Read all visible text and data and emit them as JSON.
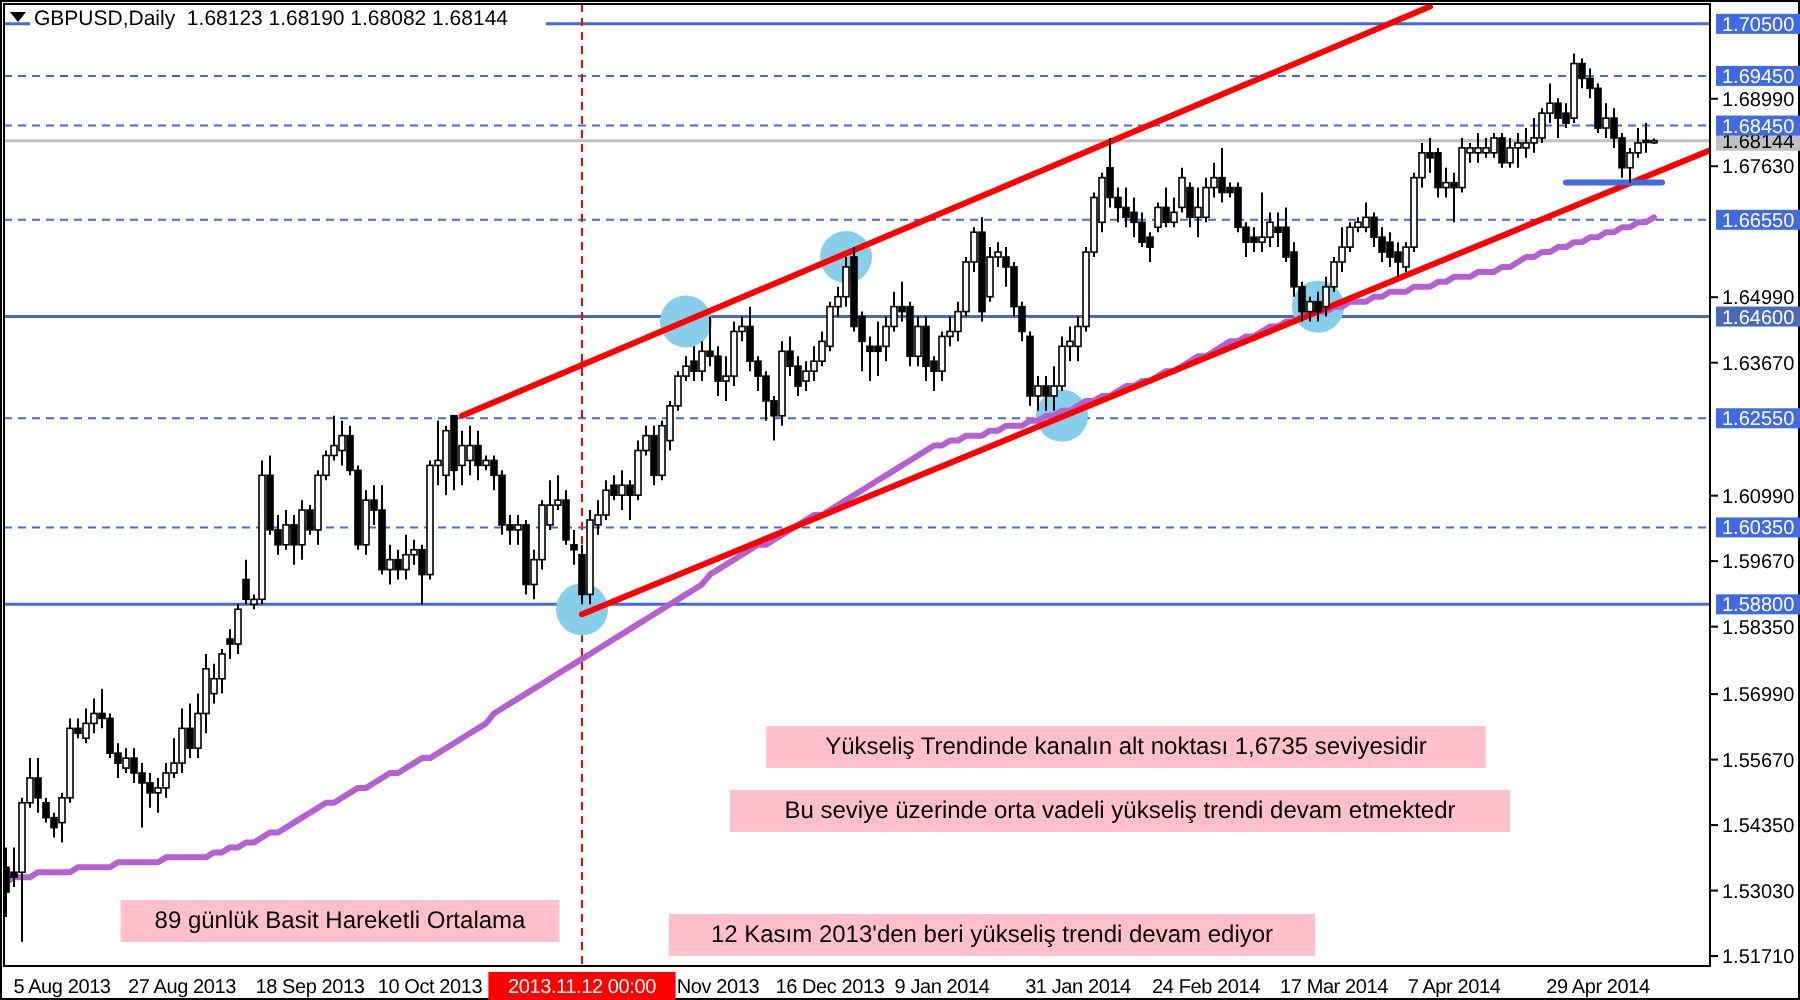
{
  "chart_data": {
    "type": "candlestick",
    "title": "GBPUSD,Daily  1.68123 1.68190 1.68082 1.68144",
    "categories": [
      null,
      null,
      null,
      null,
      null,
      null,
      null,
      "5 Aug 2013",
      null,
      null,
      null,
      null,
      null,
      null,
      null,
      null,
      null,
      null,
      null,
      null,
      null,
      null,
      "27 Aug 2013",
      null,
      null,
      null,
      null,
      null,
      null,
      null,
      null,
      null,
      null,
      null,
      null,
      null,
      null,
      null,
      "18 Sep 2013",
      null,
      null,
      null,
      null,
      null,
      null,
      null,
      null,
      null,
      null,
      null,
      null,
      null,
      null,
      "10 Oct 2013",
      null,
      null,
      null,
      null,
      null,
      null,
      null,
      null,
      null,
      null,
      null,
      null,
      null,
      null,
      null,
      null,
      null,
      null,
      "2013.11.12 00:00",
      null,
      null,
      null,
      null,
      null,
      null,
      null,
      null,
      null,
      null,
      null,
      null,
      null,
      null,
      null,
      null,
      "Nov 2013",
      null,
      null,
      null,
      null,
      null,
      null,
      null,
      null,
      null,
      null,
      null,
      null,
      null,
      "16 Dec 2013",
      null,
      null,
      null,
      null,
      null,
      null,
      null,
      null,
      null,
      null,
      null,
      null,
      null,
      "9 Jan 2014",
      null,
      null,
      null,
      null,
      null,
      null,
      null,
      null,
      null,
      null,
      null,
      null,
      null,
      null,
      null,
      null,
      "31 Jan 2014",
      null,
      null,
      null,
      null,
      null,
      null,
      null,
      null,
      null,
      null,
      null,
      null,
      null,
      null,
      null,
      "24 Feb 2014",
      null,
      null,
      null,
      null,
      null,
      null,
      null,
      null,
      null,
      null,
      null,
      null,
      null,
      null,
      null,
      "17 Mar 2014",
      null,
      null,
      null,
      null,
      null,
      null,
      null,
      null,
      null,
      null,
      null,
      null,
      null,
      null,
      "7 Apr 2014",
      null,
      null,
      null,
      null,
      null,
      null,
      null,
      null,
      null,
      null,
      null,
      null,
      null,
      null,
      null,
      null,
      null,
      "29 Apr 2014",
      null,
      null,
      null,
      null,
      null,
      null,
      null,
      null,
      null,
      null,
      null,
      null,
      null,
      null
    ],
    "ohlc": [
      [
        1.535,
        1.539,
        1.525,
        1.53
      ],
      [
        1.534,
        1.539,
        1.531,
        1.533
      ],
      [
        1.534,
        1.549,
        1.52,
        1.548
      ],
      [
        1.548,
        1.557,
        1.547,
        1.553
      ],
      [
        1.553,
        1.557,
        1.546,
        1.549
      ],
      [
        1.548,
        1.549,
        1.544,
        1.545
      ],
      [
        1.545,
        1.546,
        1.541,
        1.543
      ],
      [
        1.544,
        1.55,
        1.54,
        1.549
      ],
      [
        1.549,
        1.565,
        1.548,
        1.563
      ],
      [
        1.563,
        1.565,
        1.561,
        1.562
      ],
      [
        1.561,
        1.567,
        1.56,
        1.564
      ],
      [
        1.564,
        1.569,
        1.562,
        1.566
      ],
      [
        1.566,
        1.571,
        1.563,
        1.565
      ],
      [
        1.565,
        1.566,
        1.557,
        1.558
      ],
      [
        1.558,
        1.56,
        1.553,
        1.556
      ],
      [
        1.555,
        1.559,
        1.554,
        1.557
      ],
      [
        1.557,
        1.559,
        1.552,
        1.554
      ],
      [
        1.554,
        1.556,
        1.543,
        1.552
      ],
      [
        1.552,
        1.554,
        1.547,
        1.55
      ],
      [
        1.55,
        1.553,
        1.546,
        1.551
      ],
      [
        1.551,
        1.556,
        1.549,
        1.554
      ],
      [
        1.554,
        1.561,
        1.553,
        1.556
      ],
      [
        1.556,
        1.567,
        1.554,
        1.563
      ],
      [
        1.563,
        1.568,
        1.557,
        1.559
      ],
      [
        1.559,
        1.57,
        1.557,
        1.566
      ],
      [
        1.566,
        1.578,
        1.562,
        1.575
      ],
      [
        1.57,
        1.576,
        1.568,
        1.573
      ],
      [
        1.573,
        1.579,
        1.57,
        1.578
      ],
      [
        1.581,
        1.583,
        1.577,
        1.58
      ],
      [
        1.58,
        1.588,
        1.578,
        1.587
      ],
      [
        1.593,
        1.597,
        1.588,
        1.589
      ],
      [
        1.588,
        1.59,
        1.587,
        1.589
      ],
      [
        1.589,
        1.617,
        1.588,
        1.614
      ],
      [
        1.614,
        1.618,
        1.602,
        1.603
      ],
      [
        1.603,
        1.606,
        1.598,
        1.6
      ],
      [
        1.6,
        1.607,
        1.599,
        1.604
      ],
      [
        1.604,
        1.606,
        1.596,
        1.6
      ],
      [
        1.6,
        1.609,
        1.597,
        1.607
      ],
      [
        1.607,
        1.608,
        1.602,
        1.603
      ],
      [
        1.603,
        1.615,
        1.6,
        1.614
      ],
      [
        1.614,
        1.619,
        1.613,
        1.618
      ],
      [
        1.618,
        1.626,
        1.617,
        1.62
      ],
      [
        1.619,
        1.625,
        1.616,
        1.622
      ],
      [
        1.622,
        1.624,
        1.614,
        1.615
      ],
      [
        1.615,
        1.616,
        1.599,
        1.6
      ],
      [
        1.6,
        1.611,
        1.598,
        1.609
      ],
      [
        1.609,
        1.612,
        1.604,
        1.607
      ],
      [
        1.607,
        1.612,
        1.594,
        1.595
      ],
      [
        1.595,
        1.6,
        1.592,
        1.597
      ],
      [
        1.597,
        1.599,
        1.593,
        1.595
      ],
      [
        1.595,
        1.602,
        1.593,
        1.598
      ],
      [
        1.598,
        1.601,
        1.596,
        1.599
      ],
      [
        1.599,
        1.6,
        1.588,
        1.594
      ],
      [
        1.594,
        1.617,
        1.593,
        1.616
      ],
      [
        1.616,
        1.625,
        1.612,
        1.617
      ],
      [
        1.614,
        1.624,
        1.61,
        1.623
      ],
      [
        1.626,
        1.626,
        1.611,
        1.615
      ],
      [
        1.616,
        1.623,
        1.612,
        1.62
      ],
      [
        1.617,
        1.624,
        1.614,
        1.62
      ],
      [
        1.62,
        1.623,
        1.613,
        1.616
      ],
      [
        1.616,
        1.618,
        1.615,
        1.617
      ],
      [
        1.617,
        1.618,
        1.611,
        1.614
      ],
      [
        1.614,
        1.615,
        1.602,
        1.604
      ],
      [
        1.604,
        1.606,
        1.6,
        1.603
      ],
      [
        1.603,
        1.606,
        1.6,
        1.604
      ],
      [
        1.604,
        1.605,
        1.59,
        1.592
      ],
      [
        1.592,
        1.599,
        1.589,
        1.597
      ],
      [
        1.597,
        1.609,
        1.595,
        1.608
      ],
      [
        1.604,
        1.613,
        1.603,
        1.608
      ],
      [
        1.608,
        1.614,
        1.607,
        1.609
      ],
      [
        1.609,
        1.611,
        1.6,
        1.601
      ],
      [
        1.6,
        1.603,
        1.596,
        1.599
      ],
      [
        1.598,
        1.6,
        1.588,
        1.59
      ],
      [
        1.59,
        1.607,
        1.588,
        1.605
      ],
      [
        1.604,
        1.609,
        1.602,
        1.606
      ],
      [
        1.606,
        1.613,
        1.605,
        1.611
      ],
      [
        1.612,
        1.614,
        1.609,
        1.61
      ],
      [
        1.61,
        1.615,
        1.607,
        1.612
      ],
      [
        1.612,
        1.613,
        1.605,
        1.61
      ],
      [
        1.61,
        1.621,
        1.609,
        1.619
      ],
      [
        1.619,
        1.624,
        1.618,
        1.622
      ],
      [
        1.622,
        1.624,
        1.612,
        1.614
      ],
      [
        1.614,
        1.625,
        1.613,
        1.624
      ],
      [
        1.621,
        1.629,
        1.619,
        1.628
      ],
      [
        1.628,
        1.635,
        1.627,
        1.634
      ],
      [
        1.634,
        1.638,
        1.633,
        1.636
      ],
      [
        1.637,
        1.64,
        1.633,
        1.635
      ],
      [
        1.635,
        1.641,
        1.633,
        1.639
      ],
      [
        1.639,
        1.646,
        1.636,
        1.638
      ],
      [
        1.638,
        1.64,
        1.63,
        1.633
      ],
      [
        1.633,
        1.638,
        1.629,
        1.634
      ],
      [
        1.634,
        1.645,
        1.632,
        1.643
      ],
      [
        1.643,
        1.646,
        1.641,
        1.644
      ],
      [
        1.644,
        1.648,
        1.635,
        1.637
      ],
      [
        1.637,
        1.638,
        1.631,
        1.634
      ],
      [
        1.634,
        1.635,
        1.625,
        1.629
      ],
      [
        1.629,
        1.63,
        1.621,
        1.626
      ],
      [
        1.626,
        1.641,
        1.624,
        1.639
      ],
      [
        1.639,
        1.642,
        1.634,
        1.636
      ],
      [
        1.636,
        1.638,
        1.63,
        1.632
      ],
      [
        1.633,
        1.637,
        1.631,
        1.635
      ],
      [
        1.635,
        1.64,
        1.633,
        1.637
      ],
      [
        1.637,
        1.643,
        1.636,
        1.641
      ],
      [
        1.64,
        1.649,
        1.639,
        1.648
      ],
      [
        1.648,
        1.652,
        1.646,
        1.65
      ],
      [
        1.65,
        1.658,
        1.648,
        1.656
      ],
      [
        1.658,
        1.66,
        1.643,
        1.644
      ],
      [
        1.646,
        1.647,
        1.635,
        1.641
      ],
      [
        1.64,
        1.642,
        1.633,
        1.639
      ],
      [
        1.64,
        1.645,
        1.634,
        1.639
      ],
      [
        1.64,
        1.646,
        1.637,
        1.644
      ],
      [
        1.644,
        1.651,
        1.643,
        1.648
      ],
      [
        1.648,
        1.653,
        1.645,
        1.647
      ],
      [
        1.648,
        1.649,
        1.636,
        1.638
      ],
      [
        1.638,
        1.646,
        1.636,
        1.644
      ],
      [
        1.644,
        1.646,
        1.633,
        1.636
      ],
      [
        1.637,
        1.638,
        1.631,
        1.635
      ],
      [
        1.635,
        1.643,
        1.633,
        1.642
      ],
      [
        1.642,
        1.646,
        1.64,
        1.643
      ],
      [
        1.643,
        1.649,
        1.641,
        1.647
      ],
      [
        1.647,
        1.658,
        1.646,
        1.657
      ],
      [
        1.657,
        1.664,
        1.655,
        1.663
      ],
      [
        1.663,
        1.666,
        1.645,
        1.647
      ],
      [
        1.65,
        1.66,
        1.649,
        1.658
      ],
      [
        1.658,
        1.661,
        1.656,
        1.659
      ],
      [
        1.658,
        1.66,
        1.652,
        1.656
      ],
      [
        1.656,
        1.657,
        1.646,
        1.648
      ],
      [
        1.648,
        1.649,
        1.641,
        1.643
      ],
      [
        1.642,
        1.643,
        1.628,
        1.63
      ],
      [
        1.63,
        1.634,
        1.627,
        1.632
      ],
      [
        1.632,
        1.634,
        1.627,
        1.63
      ],
      [
        1.63,
        1.636,
        1.627,
        1.632
      ],
      [
        1.632,
        1.642,
        1.631,
        1.64
      ],
      [
        1.64,
        1.644,
        1.637,
        1.641
      ],
      [
        1.64,
        1.646,
        1.637,
        1.644
      ],
      [
        1.644,
        1.66,
        1.643,
        1.659
      ],
      [
        1.659,
        1.671,
        1.658,
        1.67
      ],
      [
        1.665,
        1.675,
        1.663,
        1.674
      ],
      [
        1.676,
        1.682,
        1.668,
        1.67
      ],
      [
        1.67,
        1.672,
        1.665,
        1.668
      ],
      [
        1.668,
        1.672,
        1.664,
        1.666
      ],
      [
        1.667,
        1.67,
        1.662,
        1.665
      ],
      [
        1.665,
        1.667,
        1.66,
        1.661
      ],
      [
        1.662,
        1.663,
        1.657,
        1.66
      ],
      [
        1.664,
        1.669,
        1.663,
        1.668
      ],
      [
        1.668,
        1.672,
        1.664,
        1.665
      ],
      [
        1.665,
        1.67,
        1.664,
        1.667
      ],
      [
        1.668,
        1.676,
        1.667,
        1.674
      ],
      [
        1.672,
        1.673,
        1.664,
        1.666
      ],
      [
        1.666,
        1.672,
        1.662,
        1.668
      ],
      [
        1.666,
        1.674,
        1.665,
        1.672
      ],
      [
        1.672,
        1.677,
        1.67,
        1.674
      ],
      [
        1.674,
        1.68,
        1.669,
        1.671
      ],
      [
        1.672,
        1.673,
        1.67,
        1.671
      ],
      [
        1.672,
        1.673,
        1.663,
        1.664
      ],
      [
        1.664,
        1.665,
        1.658,
        1.661
      ],
      [
        1.662,
        1.664,
        1.659,
        1.661
      ],
      [
        1.661,
        1.671,
        1.659,
        1.662
      ],
      [
        1.662,
        1.667,
        1.66,
        1.665
      ],
      [
        1.664,
        1.667,
        1.66,
        1.663
      ],
      [
        1.664,
        1.668,
        1.657,
        1.658
      ],
      [
        1.659,
        1.661,
        1.65,
        1.652
      ],
      [
        1.652,
        1.653,
        1.645,
        1.647
      ],
      [
        1.647,
        1.65,
        1.645,
        1.649
      ],
      [
        1.649,
        1.651,
        1.645,
        1.647
      ],
      [
        1.648,
        1.654,
        1.646,
        1.652
      ],
      [
        1.652,
        1.658,
        1.651,
        1.657
      ],
      [
        1.657,
        1.664,
        1.655,
        1.66
      ],
      [
        1.66,
        1.665,
        1.659,
        1.664
      ],
      [
        1.664,
        1.666,
        1.663,
        1.665
      ],
      [
        1.664,
        1.669,
        1.663,
        1.666
      ],
      [
        1.666,
        1.667,
        1.66,
        1.662
      ],
      [
        1.662,
        1.664,
        1.657,
        1.659
      ],
      [
        1.661,
        1.663,
        1.656,
        1.658
      ],
      [
        1.659,
        1.661,
        1.654,
        1.657
      ],
      [
        1.656,
        1.661,
        1.655,
        1.66
      ],
      [
        1.66,
        1.675,
        1.659,
        1.674
      ],
      [
        1.674,
        1.681,
        1.672,
        1.679
      ],
      [
        1.679,
        1.682,
        1.675,
        1.678
      ],
      [
        1.679,
        1.68,
        1.67,
        1.672
      ],
      [
        1.672,
        1.676,
        1.67,
        1.673
      ],
      [
        1.673,
        1.675,
        1.665,
        1.672
      ],
      [
        1.672,
        1.682,
        1.671,
        1.68
      ],
      [
        1.679,
        1.681,
        1.677,
        1.68
      ],
      [
        1.679,
        1.683,
        1.677,
        1.68
      ],
      [
        1.679,
        1.682,
        1.678,
        1.68
      ],
      [
        1.679,
        1.683,
        1.678,
        1.682
      ],
      [
        1.682,
        1.683,
        1.676,
        1.677
      ],
      [
        1.677,
        1.682,
        1.676,
        1.68
      ],
      [
        1.68,
        1.683,
        1.676,
        1.681
      ],
      [
        1.68,
        1.684,
        1.678,
        1.681
      ],
      [
        1.681,
        1.686,
        1.679,
        1.682
      ],
      [
        1.682,
        1.688,
        1.681,
        1.687
      ],
      [
        1.687,
        1.693,
        1.685,
        1.689
      ],
      [
        1.689,
        1.69,
        1.682,
        1.686
      ],
      [
        1.687,
        1.689,
        1.684,
        1.685
      ],
      [
        1.686,
        1.699,
        1.685,
        1.697
      ],
      [
        1.697,
        1.698,
        1.692,
        1.694
      ],
      [
        1.694,
        1.696,
        1.69,
        1.692
      ],
      [
        1.692,
        1.693,
        1.683,
        1.684
      ],
      [
        1.684,
        1.689,
        1.682,
        1.686
      ],
      [
        1.686,
        1.688,
        1.68,
        1.682
      ],
      [
        1.682,
        1.683,
        1.674,
        1.676
      ],
      [
        1.676,
        1.68,
        1.673,
        1.679
      ],
      [
        1.679,
        1.684,
        1.678,
        1.681
      ],
      [
        1.6815,
        1.685,
        1.679,
        1.6812
      ],
      [
        1.68123,
        1.6819,
        1.68082,
        1.68144
      ],
      null,
      null,
      null,
      null,
      null,
      null,
      null
    ],
    "series": [
      {
        "type": "scatter",
        "color": "#87ceeb",
        "marker": "circle",
        "values": [
          null,
          null,
          null,
          null,
          null,
          null,
          null,
          null,
          null,
          null,
          null,
          null,
          null,
          null,
          null,
          null,
          null,
          null,
          null,
          null,
          null,
          null,
          null,
          null,
          null,
          null,
          null,
          null,
          null,
          null,
          null,
          null,
          null,
          null,
          null,
          null,
          null,
          null,
          null,
          null,
          null,
          null,
          null,
          null,
          null,
          null,
          null,
          null,
          null,
          null,
          null,
          null,
          null,
          null,
          null,
          null,
          null,
          null,
          null,
          null,
          null,
          null,
          null,
          null,
          null,
          null,
          null,
          null,
          null,
          null,
          null,
          null,
          1.587,
          null,
          null,
          null,
          null,
          null,
          null,
          null,
          null,
          null,
          null,
          null,
          null,
          1.645,
          null,
          null,
          null,
          null,
          null,
          null,
          null,
          null,
          null,
          null,
          null,
          null,
          null,
          null,
          null,
          null,
          null,
          null,
          null,
          1.658,
          null,
          null,
          null,
          null,
          null,
          null,
          null,
          null,
          null,
          null,
          null,
          null,
          null,
          null,
          null,
          null,
          null,
          null,
          null,
          null,
          null,
          null,
          null,
          null,
          null,
          null,
          1.626,
          null,
          null,
          null,
          null,
          null,
          null,
          null,
          null,
          null,
          null,
          null,
          null,
          null,
          null,
          null,
          null,
          null,
          null,
          null,
          null,
          null,
          null,
          null,
          null,
          null,
          null,
          null,
          null,
          null,
          null,
          null,
          1.648,
          null,
          null,
          null,
          null,
          null,
          null,
          null,
          null,
          null,
          null,
          null,
          null,
          null,
          null,
          null,
          null,
          null,
          null,
          null,
          null,
          null,
          null,
          null,
          null,
          null,
          null,
          null,
          null,
          null,
          null,
          null,
          null,
          null,
          null,
          null,
          null,
          null,
          null,
          null,
          null,
          null,
          null,
          null,
          null,
          null,
          null,
          null,
          null,
          null
        ]
      },
      {
        "type": "line",
        "color": "#b45fd2",
        "values": [
          1.532,
          1.533,
          1.533,
          1.533,
          1.534,
          1.534,
          1.534,
          1.534,
          1.534,
          1.535,
          1.535,
          1.535,
          1.535,
          1.535,
          1.536,
          1.536,
          1.536,
          1.536,
          1.536,
          1.536,
          1.537,
          1.537,
          1.537,
          1.537,
          1.537,
          1.537,
          1.538,
          1.538,
          1.539,
          1.539,
          1.54,
          1.54,
          1.541,
          1.542,
          1.542,
          1.543,
          1.544,
          1.545,
          1.546,
          1.547,
          1.548,
          1.548,
          1.549,
          1.55,
          1.551,
          1.551,
          1.552,
          1.553,
          1.554,
          1.554,
          1.555,
          1.556,
          1.557,
          1.557,
          1.558,
          1.559,
          1.56,
          1.561,
          1.562,
          1.563,
          1.564,
          1.566,
          1.567,
          1.568,
          1.569,
          1.57,
          1.571,
          1.572,
          1.573,
          1.574,
          1.575,
          1.576,
          1.577,
          1.578,
          1.579,
          1.58,
          1.581,
          1.582,
          1.583,
          1.584,
          1.585,
          1.586,
          1.587,
          1.588,
          1.589,
          1.59,
          1.591,
          1.592,
          1.594,
          1.595,
          1.596,
          1.597,
          1.598,
          1.599,
          1.6,
          1.6,
          1.601,
          1.602,
          1.603,
          1.604,
          1.605,
          1.606,
          1.606,
          1.607,
          1.608,
          1.609,
          1.61,
          1.611,
          1.612,
          1.613,
          1.614,
          1.615,
          1.616,
          1.617,
          1.618,
          1.619,
          1.62,
          1.62,
          1.621,
          1.621,
          1.622,
          1.622,
          1.622,
          1.623,
          1.623,
          1.624,
          1.624,
          1.624,
          1.625,
          1.625,
          1.626,
          1.626,
          1.627,
          1.627,
          1.628,
          1.629,
          1.629,
          1.63,
          1.63,
          1.631,
          1.632,
          1.632,
          1.633,
          1.633,
          1.634,
          1.635,
          1.635,
          1.636,
          1.637,
          1.638,
          1.638,
          1.639,
          1.64,
          1.641,
          1.641,
          1.642,
          1.642,
          1.643,
          1.644,
          1.644,
          1.645,
          1.645,
          1.646,
          1.647,
          1.647,
          1.647,
          1.648,
          1.648,
          1.649,
          1.649,
          1.649,
          1.65,
          1.65,
          1.651,
          1.651,
          1.651,
          1.652,
          1.652,
          1.652,
          1.653,
          1.653,
          1.654,
          1.654,
          1.654,
          1.655,
          1.655,
          1.655,
          1.656,
          1.656,
          1.657,
          1.658,
          1.658,
          1.659,
          1.659,
          1.66,
          1.66,
          1.661,
          1.661,
          1.662,
          1.662,
          1.663,
          1.663,
          1.664,
          1.664,
          1.665,
          1.665,
          1.666,
          null,
          null,
          null,
          null,
          null,
          null,
          null
        ]
      },
      {
        "type": "line",
        "color": "#ff0000",
        "values": [
          null,
          null,
          null,
          null,
          null,
          null,
          null,
          null,
          null,
          null,
          null,
          null,
          null,
          null,
          null,
          null,
          null,
          null,
          null,
          null,
          null,
          null,
          null,
          null,
          null,
          null,
          null,
          null,
          null,
          null,
          null,
          null,
          null,
          null,
          null,
          null,
          null,
          null,
          null,
          null,
          null,
          null,
          null,
          null,
          null,
          null,
          null,
          null,
          null,
          null,
          null,
          null,
          null,
          null,
          null,
          null,
          null,
          1.626,
          null,
          null,
          null,
          null,
          null,
          null,
          null,
          null,
          null,
          null,
          null,
          null,
          null,
          null,
          null,
          null,
          null,
          null,
          null,
          null,
          null,
          null,
          null,
          null,
          null,
          null,
          null,
          null,
          null,
          null,
          null,
          null,
          null,
          null,
          null,
          null,
          null,
          null,
          null,
          null,
          null,
          null,
          null,
          null,
          null,
          null,
          null,
          null,
          null,
          null,
          null,
          null,
          null,
          null,
          null,
          null,
          null,
          null,
          null,
          null,
          null,
          null,
          null,
          null,
          null,
          null,
          null,
          null,
          null,
          null,
          null,
          null,
          null,
          null,
          null,
          null,
          null,
          null,
          null,
          null,
          null,
          null,
          null,
          null,
          null,
          null,
          null,
          null,
          null,
          null,
          null,
          null,
          null,
          null,
          null,
          null,
          null,
          null,
          null,
          null,
          null,
          null,
          null,
          null,
          null,
          null,
          null,
          null,
          null,
          null,
          null,
          null,
          null,
          null,
          null,
          null,
          null,
          null,
          null,
          null,
          1.7085,
          null,
          null,
          null,
          null,
          null,
          null,
          null,
          null,
          null,
          null,
          null,
          null,
          null,
          null,
          null,
          null,
          null,
          null,
          null,
          null,
          null,
          null,
          null,
          null,
          null,
          null,
          null,
          null,
          null,
          null,
          null,
          null,
          null,
          null,
          null
        ]
      },
      {
        "type": "line",
        "color": "#ff0000",
        "values": [
          null,
          null,
          null,
          null,
          null,
          null,
          null,
          null,
          null,
          null,
          null,
          null,
          null,
          null,
          null,
          null,
          null,
          null,
          null,
          null,
          null,
          null,
          null,
          null,
          null,
          null,
          null,
          null,
          null,
          null,
          null,
          null,
          null,
          null,
          null,
          null,
          null,
          null,
          null,
          null,
          null,
          null,
          null,
          null,
          null,
          null,
          null,
          null,
          null,
          null,
          null,
          null,
          null,
          null,
          null,
          null,
          null,
          null,
          null,
          null,
          null,
          null,
          null,
          null,
          null,
          null,
          null,
          null,
          null,
          null,
          null,
          null,
          1.586,
          null,
          null,
          null,
          null,
          null,
          null,
          null,
          null,
          null,
          null,
          null,
          null,
          null,
          null,
          null,
          null,
          null,
          null,
          null,
          null,
          null,
          null,
          null,
          null,
          null,
          null,
          null,
          null,
          null,
          null,
          null,
          null,
          null,
          null,
          null,
          null,
          null,
          null,
          null,
          null,
          null,
          null,
          null,
          null,
          null,
          null,
          null,
          null,
          null,
          null,
          null,
          null,
          null,
          null,
          null,
          null,
          null,
          null,
          null,
          null,
          null,
          null,
          null,
          null,
          null,
          null,
          null,
          null,
          null,
          null,
          null,
          null,
          null,
          null,
          null,
          null,
          null,
          null,
          null,
          null,
          null,
          null,
          null,
          null,
          null,
          null,
          null,
          null,
          null,
          null,
          null,
          null,
          null,
          null,
          null,
          null,
          null,
          null,
          null,
          null,
          null,
          null,
          null,
          null,
          null,
          null,
          null,
          null,
          null,
          null,
          null,
          null,
          null,
          null,
          null,
          null,
          null,
          null,
          null,
          null,
          null,
          null,
          null,
          null,
          null,
          null,
          null,
          null,
          null,
          null,
          null,
          null,
          null,
          null,
          null,
          null,
          null,
          null,
          null,
          null,
          1.6795
        ]
      },
      {
        "type": "line",
        "color": "#4169e1",
        "values": [
          null,
          null,
          null,
          null,
          null,
          null,
          null,
          null,
          null,
          null,
          null,
          null,
          null,
          null,
          null,
          null,
          null,
          null,
          null,
          null,
          null,
          null,
          null,
          null,
          null,
          null,
          null,
          null,
          null,
          null,
          null,
          null,
          null,
          null,
          null,
          null,
          null,
          null,
          null,
          null,
          null,
          null,
          null,
          null,
          null,
          null,
          null,
          null,
          null,
          null,
          null,
          null,
          null,
          null,
          null,
          null,
          null,
          null,
          null,
          null,
          null,
          null,
          null,
          null,
          null,
          null,
          null,
          null,
          null,
          null,
          null,
          null,
          null,
          null,
          null,
          null,
          null,
          null,
          null,
          null,
          null,
          null,
          null,
          null,
          null,
          null,
          null,
          null,
          null,
          null,
          null,
          null,
          null,
          null,
          null,
          null,
          null,
          null,
          null,
          null,
          null,
          null,
          null,
          null,
          null,
          null,
          null,
          null,
          null,
          null,
          null,
          null,
          null,
          null,
          null,
          null,
          null,
          null,
          null,
          null,
          null,
          null,
          null,
          null,
          null,
          null,
          null,
          null,
          null,
          null,
          null,
          null,
          null,
          null,
          null,
          null,
          null,
          null,
          null,
          null,
          null,
          null,
          null,
          null,
          null,
          null,
          null,
          null,
          null,
          null,
          null,
          null,
          null,
          null,
          null,
          null,
          null,
          null,
          null,
          null,
          null,
          null,
          null,
          null,
          null,
          null,
          null,
          null,
          null,
          null,
          null,
          null,
          null,
          null,
          null,
          null,
          null,
          null,
          null,
          null,
          null,
          null,
          null,
          null,
          null,
          null,
          null,
          null,
          null,
          null,
          null,
          null,
          null,
          null,
          null,
          1.673,
          null,
          null,
          null,
          null,
          null,
          null,
          null,
          null,
          null,
          null,
          null,
          1.673,
          null,
          null,
          null,
          null,
          null,
          null
        ]
      }
    ],
    "ylim": [
      1.5151,
      1.709
    ],
    "yticks": [
      {
        "value": 1.6899,
        "label": "1.68990"
      },
      {
        "value": 1.6763,
        "label": "1.67630"
      },
      {
        "value": 1.6499,
        "label": "1.64990"
      },
      {
        "value": 1.6367,
        "label": "1.63670"
      },
      {
        "value": 1.6099,
        "label": "1.60990"
      },
      {
        "value": 1.5967,
        "label": "1.59670"
      },
      {
        "value": 1.5835,
        "label": "1.58350"
      },
      {
        "value": 1.5699,
        "label": "1.56990"
      },
      {
        "value": 1.5567,
        "label": "1.55670"
      },
      {
        "value": 1.5435,
        "label": "1.54350"
      },
      {
        "value": 1.5303,
        "label": "1.53030"
      },
      {
        "value": 1.5171,
        "label": "1.51710"
      }
    ],
    "ref_lines": [
      {
        "axis": "y",
        "value": 1.705,
        "label": "1.70500",
        "color": "#4169e1",
        "line_style": "solid"
      },
      {
        "axis": "y",
        "value": 1.6945,
        "label": "1.69450",
        "color": "#4169e1",
        "line_style": "dashed"
      },
      {
        "axis": "y",
        "value": 1.6845,
        "label": "1.68450",
        "color": "#4169e1",
        "line_style": "dashed"
      },
      {
        "axis": "y",
        "value": 1.68144,
        "label": "1.68144",
        "color": "#c0c0c0",
        "line_style": "solid"
      },
      {
        "axis": "y",
        "value": 1.6655,
        "label": "1.66550",
        "color": "#4169e1",
        "line_style": "dashed"
      },
      {
        "axis": "y",
        "value": 1.646,
        "label": "1.64600",
        "color": "#4a6ab8",
        "line_style": "solid"
      },
      {
        "axis": "y",
        "value": 1.6255,
        "label": "1.62550",
        "color": "#4169e1",
        "line_style": "dashed"
      },
      {
        "axis": "y",
        "value": 1.6035,
        "label": "1.60350",
        "color": "#4169e1",
        "line_style": "dashed"
      },
      {
        "axis": "y",
        "value": 1.588,
        "label": "1.58800",
        "color": "#4169e1",
        "line_style": "solid"
      },
      {
        "axis": "x",
        "value": "2013.11.12 00:00",
        "color": "#ff0000",
        "line_style": "dashed"
      }
    ],
    "annotations": [
      "Yükseliş Trendinde kanalın alt noktası 1,6735 seviyesidir",
      "Bu seviye üzerinde orta vadeli yükseliş trendi devam etmektedr",
      "89 günlük Basit Hareketli Ortalama",
      "12 Kasım 2013'den beri yükseliş trendi devam ediyor"
    ]
  }
}
